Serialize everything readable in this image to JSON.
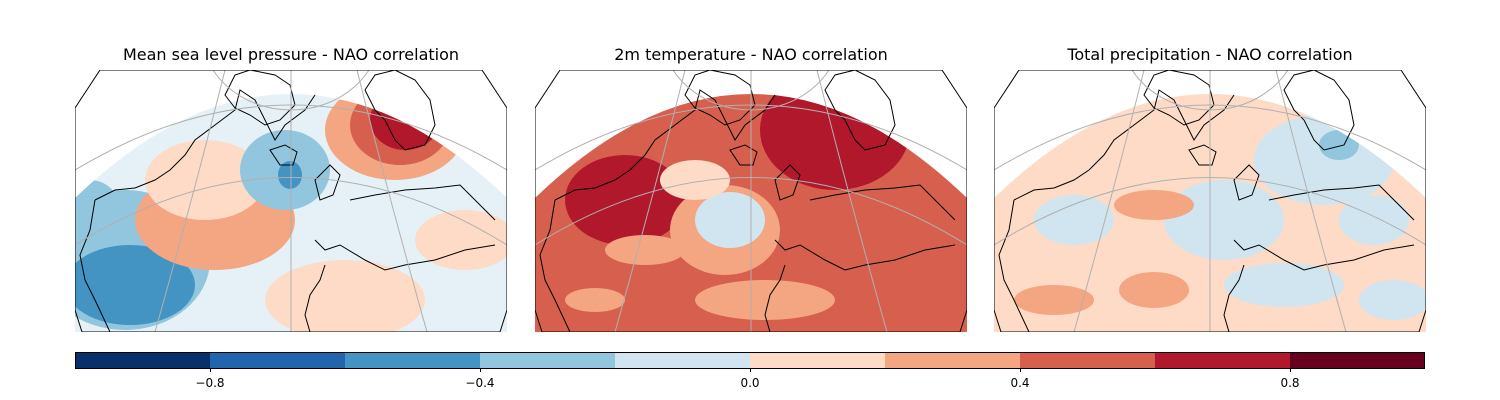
{
  "panels": [
    {
      "title": "Mean sea level pressure - NAO correlation",
      "variable": "mslp"
    },
    {
      "title": "2m temperature - NAO correlation",
      "variable": "t2m"
    },
    {
      "title": "Total precipitation - NAO correlation",
      "variable": "tp"
    }
  ],
  "colorbar": {
    "min": -1.0,
    "max": 1.0,
    "bounds": [
      -1.0,
      -0.8,
      -0.6,
      -0.4,
      -0.2,
      0.0,
      0.2,
      0.4,
      0.6,
      0.8,
      1.0
    ],
    "colors": [
      "#08306b",
      "#2166ac",
      "#4393c3",
      "#92c5de",
      "#d1e5f0",
      "#fddbc7",
      "#f4a582",
      "#d6604d",
      "#b2182b",
      "#67001f"
    ],
    "ticks": [
      "−0.8",
      "−0.4",
      "0.0",
      "0.4",
      "0.8"
    ],
    "tick_values": [
      -0.8,
      -0.4,
      0.0,
      0.4,
      0.8
    ]
  },
  "style": {
    "land_coast": "#000000",
    "gridline": "#b0b0b0",
    "frame": "#000000"
  }
}
